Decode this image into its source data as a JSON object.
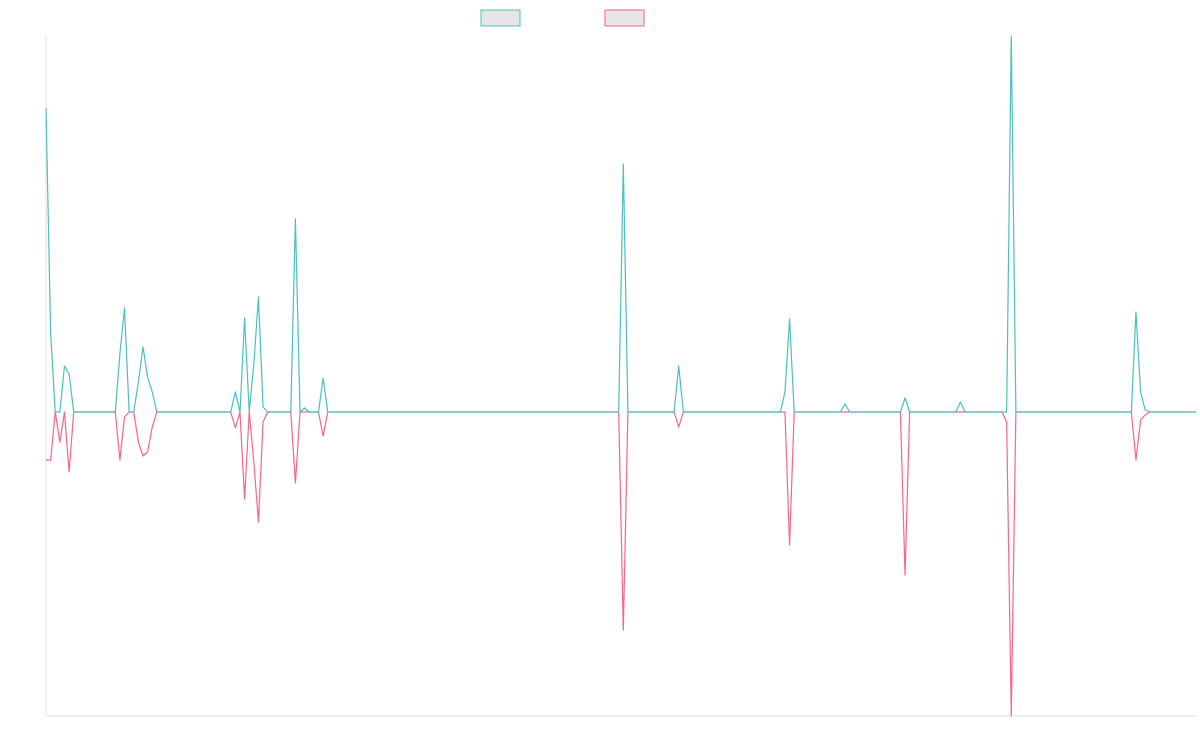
{
  "chart_data": {
    "type": "line",
    "categories": [
      null,
      null,
      null,
      null,
      null,
      null,
      null,
      null,
      null,
      null,
      null,
      null,
      null,
      null,
      null,
      null,
      null,
      null,
      null,
      null,
      null,
      null,
      null,
      null,
      null,
      null,
      null,
      null,
      null,
      null,
      null,
      null,
      null,
      null,
      null,
      null,
      null,
      null,
      null,
      null,
      null,
      null,
      null,
      null,
      null,
      null,
      null,
      null,
      null,
      null,
      null,
      null,
      null,
      null,
      null,
      null,
      null,
      null,
      null,
      null,
      null,
      null,
      null,
      null,
      null,
      null,
      null,
      null,
      null,
      null,
      null,
      null,
      null,
      null,
      null,
      null,
      null,
      null,
      null,
      null,
      null,
      null,
      null,
      null,
      null,
      null,
      null,
      null,
      null,
      null,
      null,
      null,
      null,
      null,
      null,
      null,
      null,
      null,
      null,
      null,
      null,
      null,
      null,
      null,
      null,
      null,
      null,
      null,
      null,
      null,
      null,
      null,
      null,
      null,
      null,
      null,
      null,
      null,
      null,
      null,
      null,
      null,
      null,
      null,
      null,
      null,
      null,
      null,
      null,
      null,
      null,
      null,
      null,
      null,
      null,
      null,
      null,
      null,
      null,
      null,
      null,
      null,
      null,
      null,
      null,
      null,
      null,
      null,
      null,
      null,
      null,
      null,
      null,
      null,
      null,
      null,
      null,
      null,
      null,
      null,
      null,
      null,
      null,
      null,
      null,
      null,
      null,
      null,
      null,
      null,
      null,
      null,
      null,
      null,
      null,
      null,
      null,
      null,
      null,
      null,
      null,
      null,
      null,
      null,
      null,
      null,
      null,
      null,
      null,
      null,
      null,
      null,
      null,
      null,
      null,
      null,
      null,
      null,
      null,
      null,
      null,
      null,
      null,
      null,
      null,
      null,
      null,
      null,
      null,
      null,
      null,
      null,
      null,
      null,
      null,
      null,
      null,
      null,
      null,
      null,
      null,
      null,
      null,
      null,
      null,
      null,
      null,
      null,
      null,
      null,
      null,
      null,
      null,
      null,
      null,
      null,
      null,
      null,
      null,
      null,
      null,
      null,
      null,
      null,
      null,
      null,
      null,
      null,
      null,
      null
    ],
    "series": [
      {
        "color": "#ff6384",
        "values": [
          -48,
          -48,
          0,
          -30,
          0,
          -60,
          0,
          0,
          0,
          0,
          0,
          0,
          0,
          0,
          0,
          0,
          -48,
          -5,
          0,
          0,
          -30,
          -44,
          -40,
          -15,
          0,
          0,
          0,
          0,
          0,
          0,
          0,
          0,
          0,
          0,
          0,
          0,
          0,
          0,
          0,
          0,
          0,
          -16,
          0,
          -87,
          0,
          -50,
          -110,
          -10,
          0,
          0,
          0,
          0,
          0,
          0,
          -71,
          0,
          0,
          0,
          0,
          0,
          -24,
          0,
          0,
          0,
          0,
          0,
          0,
          0,
          0,
          0,
          0,
          0,
          0,
          0,
          0,
          0,
          0,
          0,
          0,
          0,
          0,
          0,
          0,
          0,
          0,
          0,
          0,
          0,
          0,
          0,
          0,
          0,
          0,
          0,
          0,
          0,
          0,
          0,
          0,
          0,
          0,
          0,
          0,
          0,
          0,
          0,
          0,
          0,
          0,
          0,
          0,
          0,
          0,
          0,
          0,
          0,
          0,
          0,
          0,
          0,
          0,
          0,
          0,
          0,
          0,
          -218,
          0,
          0,
          0,
          0,
          0,
          0,
          0,
          0,
          0,
          0,
          0,
          -15,
          0,
          0,
          0,
          0,
          0,
          0,
          0,
          0,
          0,
          0,
          0,
          0,
          0,
          0,
          0,
          0,
          0,
          0,
          0,
          0,
          0,
          0,
          0,
          -133,
          0,
          0,
          0,
          0,
          0,
          0,
          0,
          0,
          0,
          0,
          0,
          0,
          0,
          0,
          0,
          0,
          0,
          0,
          0,
          0,
          0,
          0,
          0,
          0,
          -163,
          0,
          0,
          0,
          0,
          0,
          0,
          0,
          0,
          0,
          0,
          0,
          0,
          0,
          0,
          0,
          0,
          0,
          0,
          0,
          0,
          0,
          -10,
          -304,
          0,
          0,
          0,
          0,
          0,
          0,
          0,
          0,
          0,
          0,
          0,
          0,
          0,
          0,
          0,
          0,
          0,
          0,
          0,
          0,
          0,
          0,
          0,
          0,
          0,
          0,
          -48,
          -8,
          -3,
          0,
          0,
          0,
          0,
          0,
          0,
          0,
          0,
          0,
          0,
          0
        ]
      },
      {
        "color": "#4bc0c0",
        "values": [
          304,
          80,
          0,
          0,
          46,
          38,
          0,
          0,
          0,
          0,
          0,
          0,
          0,
          0,
          0,
          0,
          58,
          104,
          0,
          0,
          30,
          65,
          35,
          20,
          0,
          0,
          0,
          0,
          0,
          0,
          0,
          0,
          0,
          0,
          0,
          0,
          0,
          0,
          0,
          0,
          0,
          20,
          0,
          94,
          0,
          48,
          115,
          5,
          0,
          0,
          0,
          0,
          0,
          0,
          193,
          0,
          4,
          0,
          0,
          0,
          34,
          0,
          0,
          0,
          0,
          0,
          0,
          0,
          0,
          0,
          0,
          0,
          0,
          0,
          0,
          0,
          0,
          0,
          0,
          0,
          0,
          0,
          0,
          0,
          0,
          0,
          0,
          0,
          0,
          0,
          0,
          0,
          0,
          0,
          0,
          0,
          0,
          0,
          0,
          0,
          0,
          0,
          0,
          0,
          0,
          0,
          0,
          0,
          0,
          0,
          0,
          0,
          0,
          0,
          0,
          0,
          0,
          0,
          0,
          0,
          0,
          0,
          0,
          0,
          0,
          248,
          0,
          0,
          0,
          0,
          0,
          0,
          0,
          0,
          0,
          0,
          0,
          46,
          0,
          0,
          0,
          0,
          0,
          0,
          0,
          0,
          0,
          0,
          0,
          0,
          0,
          0,
          0,
          0,
          0,
          0,
          0,
          0,
          0,
          0,
          20,
          93,
          0,
          0,
          0,
          0,
          0,
          0,
          0,
          0,
          0,
          0,
          0,
          8,
          0,
          0,
          0,
          0,
          0,
          0,
          0,
          0,
          0,
          0,
          0,
          0,
          14,
          0,
          0,
          0,
          0,
          0,
          0,
          0,
          0,
          0,
          0,
          0,
          10,
          0,
          0,
          0,
          0,
          0,
          0,
          0,
          0,
          0,
          0,
          376,
          0,
          0,
          0,
          0,
          0,
          0,
          0,
          0,
          0,
          0,
          0,
          0,
          0,
          0,
          0,
          0,
          0,
          0,
          0,
          0,
          0,
          0,
          0,
          0,
          0,
          0,
          100,
          20,
          2,
          0,
          0,
          0,
          0,
          0,
          0,
          0,
          0,
          0,
          0,
          0
        ]
      }
    ],
    "ylim": [
      -304,
      376
    ],
    "grid": false
  }
}
